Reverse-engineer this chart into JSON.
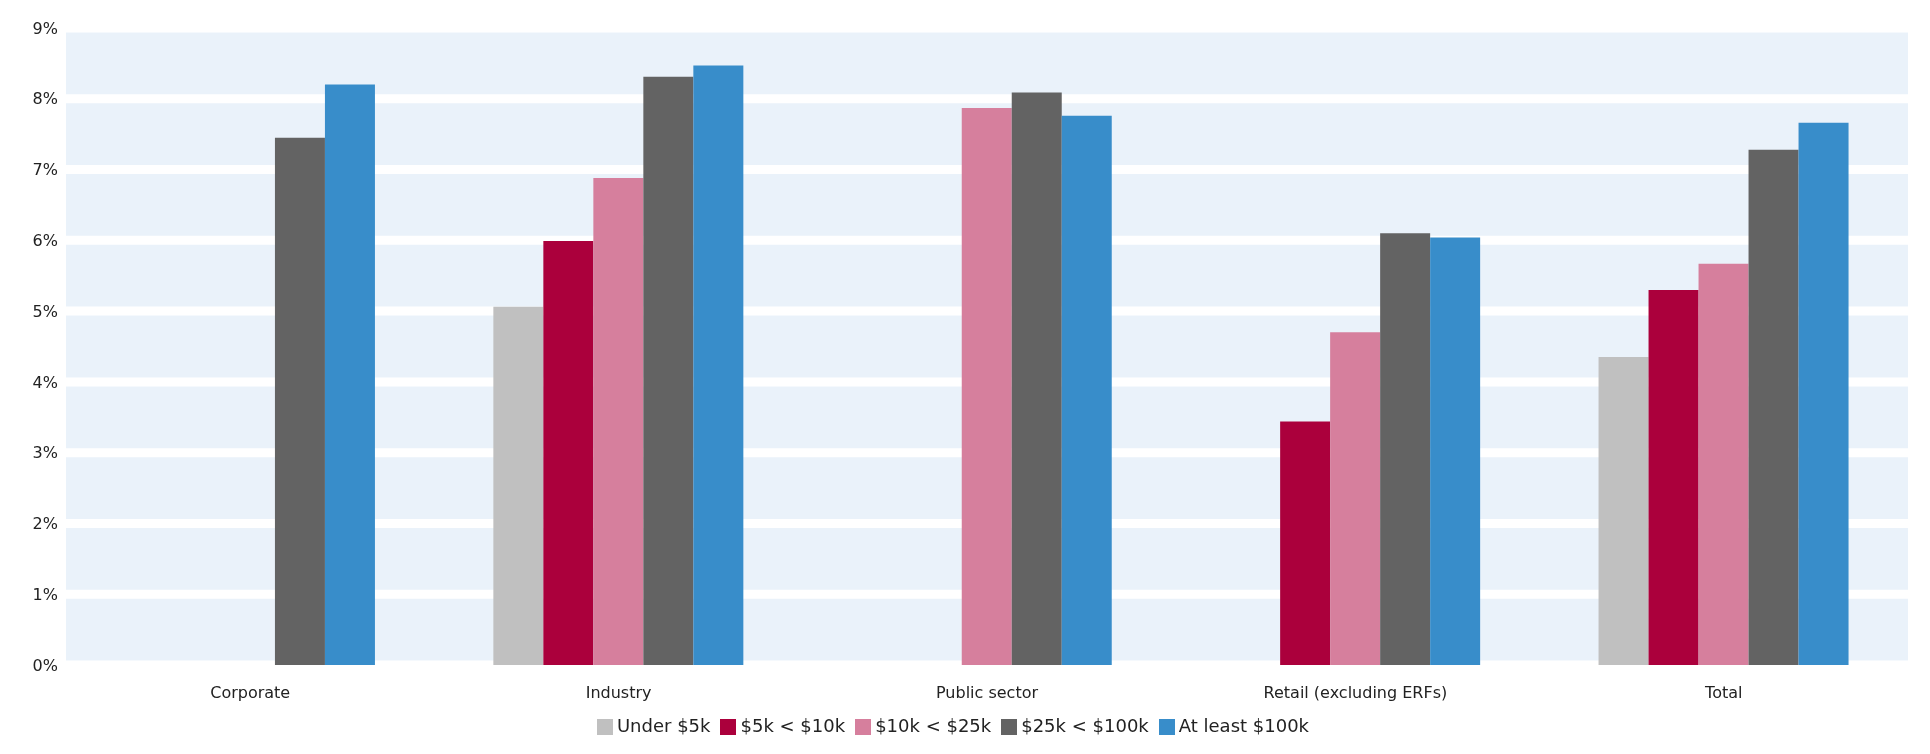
{
  "chart_data": {
    "type": "bar",
    "categories": [
      "Corporate",
      "Industry",
      "Public sector",
      "Retail (excluding ERFs)",
      "Total"
    ],
    "series": [
      {
        "name": "Under $5k",
        "color": "#c0c0c0",
        "values": [
          null,
          5.06,
          null,
          null,
          4.35
        ]
      },
      {
        "name": "$5k < $10k",
        "color": "#ab003c",
        "values": [
          null,
          5.99,
          null,
          3.44,
          5.3
        ]
      },
      {
        "name": "$10k < $25k",
        "color": "#d67f9d",
        "values": [
          null,
          6.88,
          7.87,
          4.7,
          5.67
        ]
      },
      {
        "name": "$25k < $100k",
        "color": "#636363",
        "values": [
          7.45,
          8.31,
          8.09,
          6.1,
          7.28
        ]
      },
      {
        "name": "At least $100k",
        "color": "#388dca",
        "values": [
          8.2,
          8.47,
          7.76,
          6.04,
          7.66
        ]
      }
    ],
    "ylim": [
      0,
      9
    ],
    "yticks": [
      {
        "value": 0,
        "label": "0%"
      },
      {
        "value": 1,
        "label": "1%"
      },
      {
        "value": 2,
        "label": "2%"
      },
      {
        "value": 3,
        "label": "3%"
      },
      {
        "value": 4,
        "label": "4%"
      },
      {
        "value": 5,
        "label": "5%"
      },
      {
        "value": 6,
        "label": "6%"
      },
      {
        "value": 7,
        "label": "7%"
      },
      {
        "value": 8,
        "label": "8%"
      },
      {
        "value": 9,
        "label": "9%"
      }
    ],
    "grid": "y",
    "legend": "bottom"
  }
}
